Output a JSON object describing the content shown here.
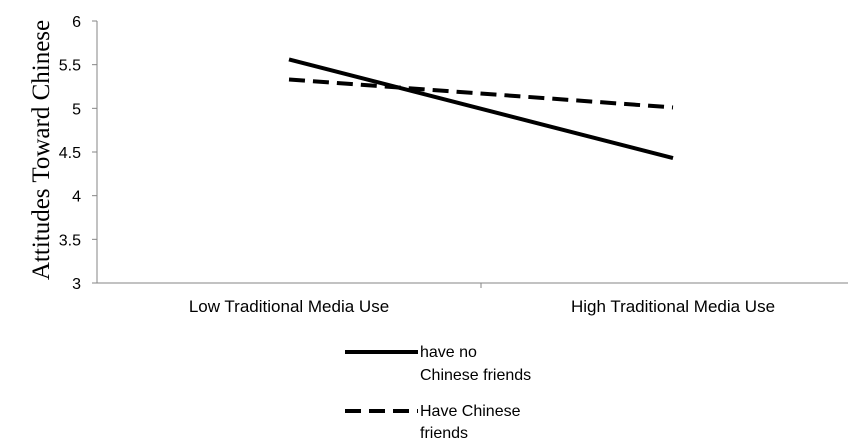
{
  "chart_data": {
    "type": "line",
    "title": "",
    "xlabel": "",
    "ylabel": "Attitudes Toward Chinese",
    "categories": [
      "Low Traditional Media Use",
      "High Traditional Media Use"
    ],
    "series": [
      {
        "name": "have no Chinese friends",
        "values": [
          5.56,
          4.43
        ],
        "color": "#000000",
        "dash": "solid"
      },
      {
        "name": "Have Chinese friends",
        "values": [
          5.33,
          5.01
        ],
        "color": "#000000",
        "dash": "dashed"
      }
    ],
    "ylim": [
      3,
      6
    ],
    "yticks": [
      "3",
      "3.5",
      "4",
      "4.5",
      "5",
      "5.5",
      "6"
    ],
    "grid": false,
    "legend_position": "bottom"
  },
  "legend": {
    "items": [
      {
        "line1": "have no",
        "line2": "Chinese friends"
      },
      {
        "line1": "Have Chinese",
        "line2": "friends"
      }
    ]
  }
}
